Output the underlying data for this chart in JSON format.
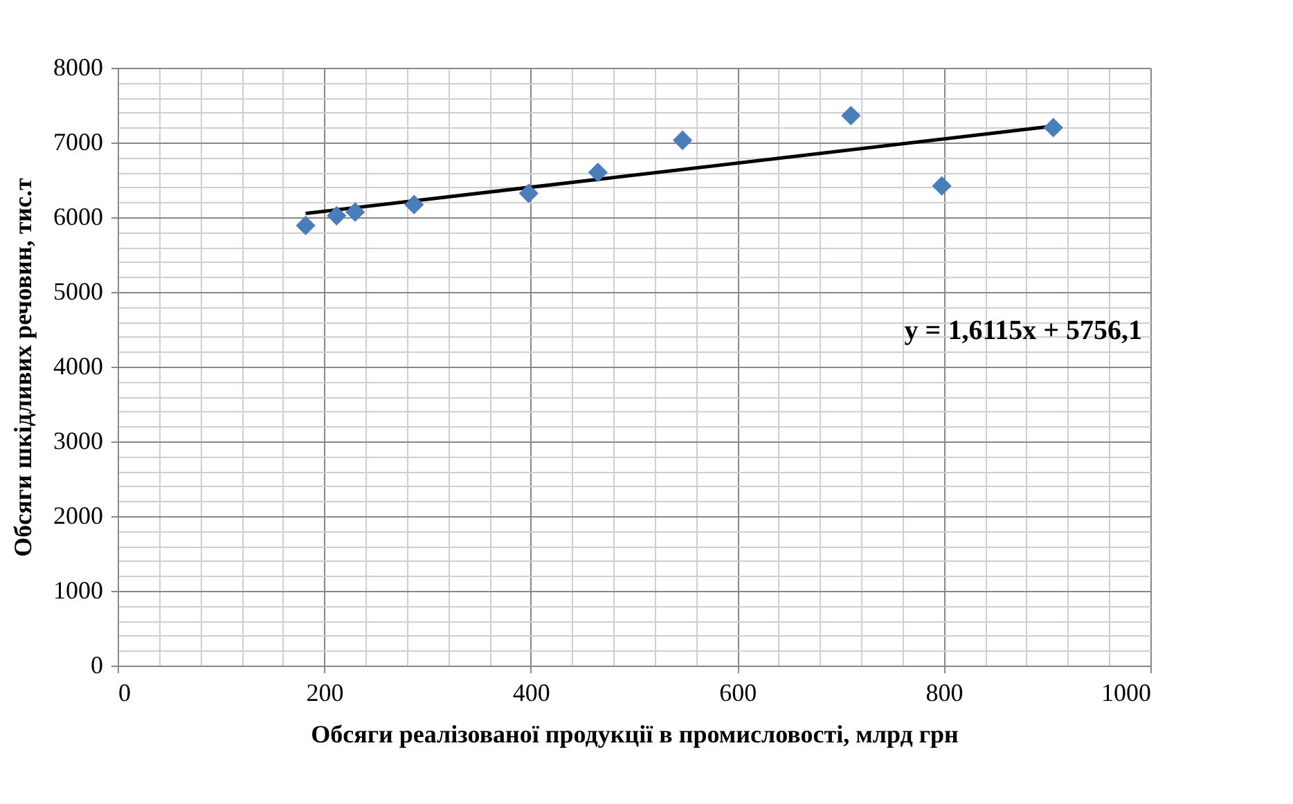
{
  "chart_data": {
    "type": "scatter",
    "xlabel": "Обсяги реалізованої продукції в промисловості, млрд грн",
    "ylabel": "Обсяги шкідливих речовин, тис.т",
    "xlim": [
      0,
      1000
    ],
    "xticks": [
      0,
      200,
      400,
      600,
      800,
      1000
    ],
    "ylim": [
      0,
      8000
    ],
    "yticks": [
      0,
      1000,
      2000,
      3000,
      4000,
      5000,
      6000,
      7000,
      8000
    ],
    "grid": true,
    "annotations": [
      "y = 1,6115x + 5756,1"
    ],
    "series": [
      {
        "type": "line",
        "color": "#000000",
        "marker": "none",
        "x": [
          182,
          906
        ],
        "values": [
          6050,
          7220
        ]
      },
      {
        "color": "#4a7ebb",
        "marker": "diamond",
        "x": [
          182,
          212,
          230,
          287,
          398,
          465,
          547,
          710,
          798,
          906
        ],
        "values": [
          5890,
          6020,
          6070,
          6170,
          6320,
          6600,
          7030,
          7360,
          6420,
          7200
        ]
      }
    ]
  }
}
